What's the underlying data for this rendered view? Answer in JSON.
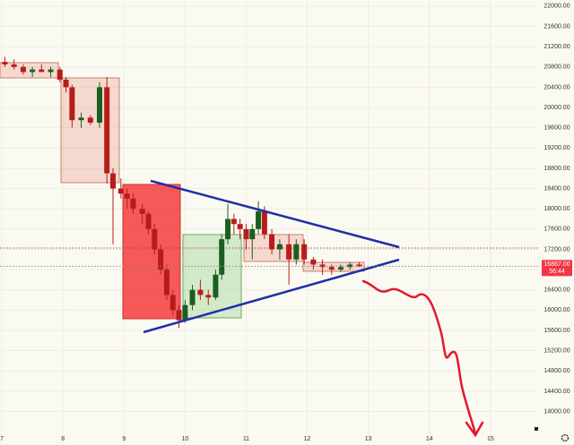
{
  "chart_data": {
    "type": "candlestick",
    "x": [
      7.05,
      7.2,
      7.35,
      7.5,
      7.65,
      7.8,
      7.95,
      8.05,
      8.15,
      8.3,
      8.45,
      8.6,
      8.72,
      8.82,
      8.95,
      9.05,
      9.15,
      9.3,
      9.4,
      9.5,
      9.6,
      9.7,
      9.8,
      9.9,
      10.0,
      10.12,
      10.25,
      10.38,
      10.5,
      10.6,
      10.7,
      10.8,
      10.9,
      11.0,
      11.1,
      11.2,
      11.3,
      11.42,
      11.55,
      11.7,
      11.82,
      11.95,
      12.1,
      12.25,
      12.4,
      12.55,
      12.7,
      12.85
    ],
    "open": [
      20900,
      20850,
      20800,
      20700,
      20750,
      20700,
      20750,
      20550,
      20400,
      19750,
      19800,
      19700,
      20400,
      18700,
      18400,
      18300,
      18200,
      18000,
      17900,
      17600,
      17200,
      16800,
      16300,
      16000,
      15800,
      16100,
      16400,
      16300,
      16250,
      16700,
      17400,
      17800,
      17700,
      17600,
      17400,
      17600,
      17950,
      17500,
      17200,
      17300,
      17000,
      17300,
      17000,
      16900,
      16850,
      16800,
      16850,
      16900
    ],
    "high": [
      21000,
      20950,
      20850,
      20800,
      20850,
      20800,
      20800,
      20600,
      20450,
      19900,
      19850,
      20500,
      20600,
      18800,
      18600,
      18400,
      18300,
      18100,
      17950,
      17700,
      17300,
      16900,
      16400,
      16100,
      16200,
      16500,
      16600,
      16400,
      16800,
      17500,
      18100,
      17900,
      17800,
      17700,
      17700,
      18150,
      18050,
      17600,
      17400,
      17500,
      17400,
      17400,
      17050,
      17000,
      16900,
      16900,
      16950,
      16950
    ],
    "low": [
      20800,
      20750,
      20650,
      20600,
      20700,
      20600,
      20500,
      20300,
      19600,
      19600,
      19650,
      19600,
      18500,
      17300,
      18200,
      18000,
      17900,
      17700,
      17500,
      17100,
      16700,
      16200,
      15900,
      15650,
      15750,
      16000,
      16200,
      16100,
      16200,
      16600,
      17300,
      17500,
      17400,
      17200,
      17000,
      17500,
      17400,
      17100,
      17000,
      16500,
      16900,
      16900,
      16800,
      16700,
      16700,
      16750,
      16800,
      16850
    ],
    "close": [
      20850,
      20800,
      20700,
      20750,
      20700,
      20750,
      20550,
      20400,
      19750,
      19800,
      19700,
      20400,
      18700,
      18400,
      18300,
      18200,
      18000,
      17900,
      17600,
      17200,
      16800,
      16300,
      16000,
      15800,
      16100,
      16400,
      16300,
      16250,
      16700,
      17400,
      17800,
      17700,
      17600,
      17400,
      17600,
      17950,
      17500,
      17200,
      17300,
      17000,
      17300,
      17000,
      16900,
      16850,
      16800,
      16850,
      16900,
      16867
    ],
    "up_color": "#1b5e20",
    "down_color": "#b71c1c",
    "xlim": [
      6.97,
      15.78
    ],
    "xticks": [
      7,
      8,
      9,
      10,
      11,
      12,
      13,
      14,
      15
    ],
    "ylim": [
      13338,
      22122
    ],
    "yticks": [
      {
        "value": 14000,
        "label": "14000.00"
      },
      {
        "value": 14400,
        "label": "14400.00"
      },
      {
        "value": 14800,
        "label": "14800.00"
      },
      {
        "value": 15200,
        "label": "15200.00"
      },
      {
        "value": 15600,
        "label": "15600.00"
      },
      {
        "value": 16000,
        "label": "16000.00"
      },
      {
        "value": 16400,
        "label": "16400.00"
      },
      {
        "value": 16800,
        "label": "16800.00"
      },
      {
        "value": 17200,
        "label": "17200.00"
      },
      {
        "value": 17600,
        "label": "17600.00"
      },
      {
        "value": 18000,
        "label": "18000.00"
      },
      {
        "value": 18400,
        "label": "18400.00"
      },
      {
        "value": 18800,
        "label": "18800.00"
      },
      {
        "value": 19200,
        "label": "19200.00"
      },
      {
        "value": 19600,
        "label": "19600.00"
      },
      {
        "value": 20000,
        "label": "20000.00"
      },
      {
        "value": 20400,
        "label": "20400.00"
      },
      {
        "value": 20800,
        "label": "20800.00"
      },
      {
        "value": 21200,
        "label": "21200.00"
      },
      {
        "value": 21600,
        "label": "21600.00"
      },
      {
        "value": 22000,
        "label": "22000.00"
      }
    ],
    "last_price": {
      "value": 16867,
      "label": "16867.00"
    },
    "countdown": "56:44",
    "grid": true
  }
}
